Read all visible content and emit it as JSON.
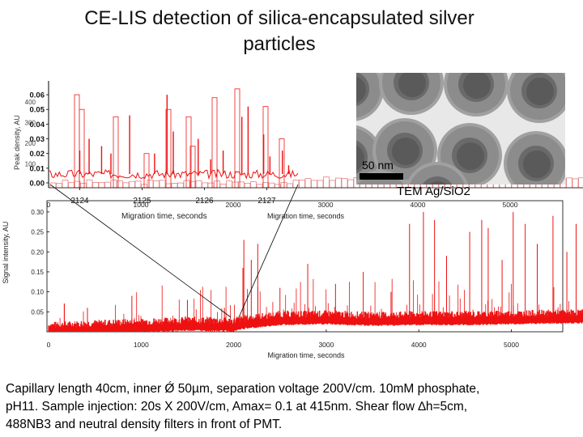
{
  "title": {
    "line1": "CE-LIS detection of silica-encapsulated silver",
    "line2": "particles"
  },
  "caption": {
    "line1": "Capillary length 40cm, inner Ǿ 50µm, separation voltage 200V/cm. 10mM phosphate,",
    "line2": "pH11. Sample injection: 20s X 200V/cm, Amax= 0.1 at 415nm. Shear flow ∆h=5cm,",
    "line3": "488NB3 and neutral density filters in front of PMT."
  },
  "tem": {
    "scale_label": "50 nm",
    "label": "TEM Ag/SiO2"
  },
  "colors": {
    "trace": "#ee1111",
    "axis": "#000000"
  },
  "chart_data": [
    {
      "type": "line",
      "name_role": "main electropherogram",
      "xlabel": "Migration time, seconds",
      "ylabel": "Signal intensity, AU",
      "xlim": [
        0,
        5800
      ],
      "ylim": [
        0,
        0.32
      ],
      "xticks": [
        0,
        1000,
        2000,
        3000,
        4000,
        5000
      ],
      "yticks": [
        0.05,
        0.1,
        0.15,
        0.2,
        0.25,
        0.3
      ],
      "ytick_labels": [
        "0.05",
        "0.10",
        "0.15",
        "0.20",
        "0.25",
        "0.30"
      ],
      "baseline_points": [
        [
          0,
          0.003
        ],
        [
          500,
          0.008
        ],
        [
          1000,
          0.012
        ],
        [
          1500,
          0.016
        ],
        [
          2000,
          0.014
        ],
        [
          2100,
          0.02
        ],
        [
          2500,
          0.03
        ],
        [
          3000,
          0.032
        ],
        [
          3500,
          0.028
        ],
        [
          4000,
          0.03
        ],
        [
          4500,
          0.03
        ],
        [
          5000,
          0.032
        ],
        [
          5800,
          0.035
        ]
      ],
      "spikes": [
        [
          170,
          0.07
        ],
        [
          420,
          0.06
        ],
        [
          900,
          0.09
        ],
        [
          1500,
          0.08
        ],
        [
          1900,
          0.06
        ],
        [
          2100,
          0.16
        ],
        [
          2110,
          0.23
        ],
        [
          2190,
          0.18
        ],
        [
          2260,
          0.22
        ],
        [
          2500,
          0.11
        ],
        [
          2800,
          0.17
        ],
        [
          3100,
          0.12
        ],
        [
          3400,
          0.15
        ],
        [
          3700,
          0.1
        ],
        [
          3900,
          0.27
        ],
        [
          4050,
          0.3
        ],
        [
          4170,
          0.28
        ],
        [
          4300,
          0.19
        ],
        [
          4550,
          0.25
        ],
        [
          4680,
          0.28
        ],
        [
          4750,
          0.26
        ],
        [
          4900,
          0.18
        ],
        [
          5020,
          0.3
        ],
        [
          5150,
          0.27
        ],
        [
          5280,
          0.22
        ],
        [
          5450,
          0.29
        ],
        [
          5600,
          0.2
        ],
        [
          5700,
          0.27
        ]
      ]
    },
    {
      "type": "line",
      "name_role": "inset zoom",
      "xlabel_inner": "Migration time, seconds",
      "xlabel_outer": "Migration time, seconds",
      "ylabel": "Peak density, AU",
      "xticks_inner": [
        "2124",
        "2125",
        "2126",
        "2127"
      ],
      "xticks_outer": [
        "0",
        "1000",
        "2000",
        "3000",
        "4000",
        "5000"
      ],
      "yticks": [
        "0.06",
        "0.05",
        "0.04",
        "0.03",
        "0.02",
        "0.01",
        "0.00"
      ],
      "yticks_ghost": [
        "400",
        "300",
        "200",
        "100"
      ],
      "x_inner_range": [
        2123.5,
        2127.5
      ],
      "ylim": [
        0,
        0.065
      ],
      "spikes": [
        [
          2124.0,
          0.022
        ],
        [
          2124.15,
          0.03
        ],
        [
          2124.35,
          0.025
        ],
        [
          2124.5,
          0.02
        ],
        [
          2124.8,
          0.046
        ],
        [
          2125.2,
          0.02
        ],
        [
          2125.4,
          0.06
        ],
        [
          2125.5,
          0.035
        ],
        [
          2125.9,
          0.03
        ],
        [
          2126.1,
          0.016
        ],
        [
          2126.3,
          0.022
        ],
        [
          2126.6,
          0.045
        ],
        [
          2126.7,
          0.052
        ],
        [
          2126.95,
          0.033
        ],
        [
          2127.05,
          0.018
        ],
        [
          2127.25,
          0.022
        ],
        [
          2127.35,
          0.012
        ]
      ],
      "baseline": 0.006
    }
  ]
}
